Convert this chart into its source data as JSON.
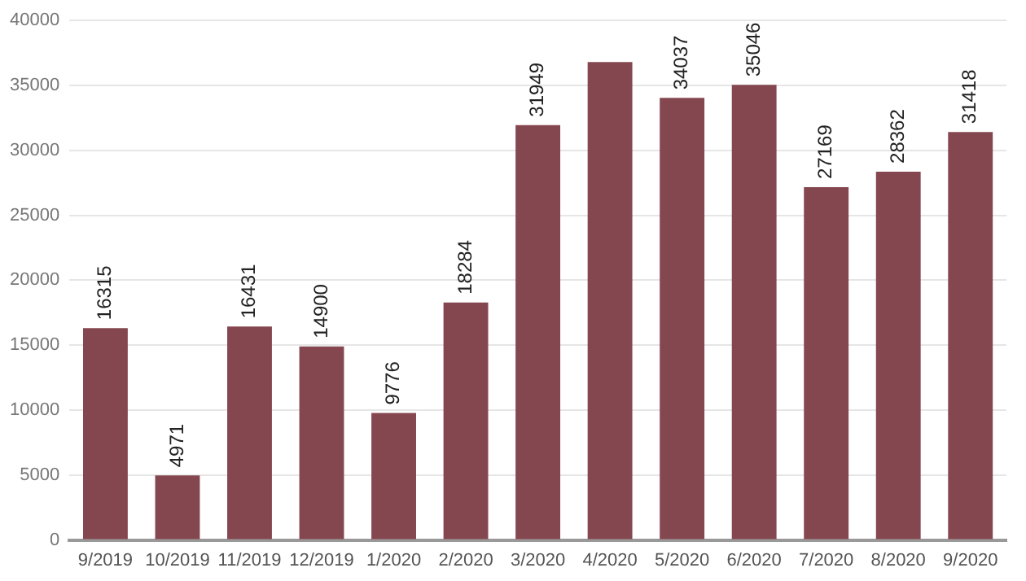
{
  "chart_data": {
    "type": "bar",
    "categories": [
      "9/2019",
      "10/2019",
      "11/2019",
      "12/2019",
      "1/2020",
      "2/2020",
      "3/2020",
      "4/2020",
      "5/2020",
      "6/2020",
      "7/2020",
      "8/2020",
      "9/2020"
    ],
    "values": [
      16315,
      4971,
      16431,
      14900,
      9776,
      18284,
      31949,
      36800,
      34037,
      35046,
      27169,
      28362,
      31418
    ],
    "value_labels": [
      "16315",
      "4971",
      "16431",
      "14900",
      "9776",
      "18284",
      "31949",
      null,
      "34037",
      "35046",
      "27169",
      "28362",
      "31418"
    ],
    "color": "#85474f",
    "ylim": [
      0,
      40000
    ],
    "yticks": [
      0,
      5000,
      10000,
      15000,
      20000,
      25000,
      30000,
      35000,
      40000
    ],
    "grid": "y",
    "legend": false
  }
}
